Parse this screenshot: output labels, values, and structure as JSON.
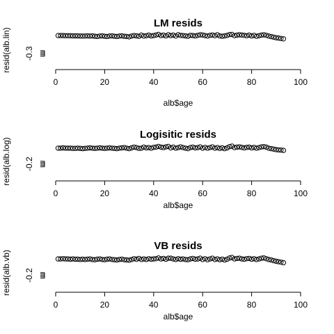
{
  "chart_data": [
    {
      "type": "scatter",
      "title": "LM resids",
      "xlabel": "alb$age",
      "ylabel": "resid(alb.lin)",
      "xlim": [
        0,
        100
      ],
      "xticks": [
        0,
        20,
        40,
        60,
        80,
        100
      ],
      "ylim": [
        -0.36,
        0.02
      ],
      "yticks": [
        -0.3
      ],
      "grid": false,
      "series": [
        {
          "x": [
            1,
            2,
            3,
            4,
            5,
            6,
            7,
            8,
            9,
            10,
            11,
            12,
            13,
            14,
            15,
            16,
            17,
            18,
            19,
            20,
            21,
            22,
            23,
            24,
            25,
            26,
            27,
            28,
            29,
            30,
            31,
            32,
            33,
            34,
            35,
            36,
            37,
            38,
            39,
            40,
            41,
            42,
            43,
            44,
            45,
            46,
            47,
            48,
            49,
            50,
            51,
            52,
            53,
            54,
            55,
            56,
            57,
            58,
            59,
            60,
            61,
            62,
            63,
            64,
            65,
            66,
            67,
            68,
            69,
            70,
            71,
            72,
            73,
            74,
            75,
            76,
            77,
            78,
            79,
            80,
            81,
            82,
            83,
            84,
            85,
            86,
            87,
            88,
            89,
            90,
            91,
            92,
            93
          ],
          "y": [
            0.0,
            0.0,
            0.0,
            -0.005,
            -0.005,
            -0.005,
            -0.01,
            -0.01,
            -0.01,
            -0.015,
            -0.015,
            -0.015,
            -0.01,
            -0.015,
            -0.01,
            -0.02,
            -0.025,
            -0.015,
            -0.01,
            -0.02,
            -0.025,
            -0.015,
            -0.01,
            -0.02,
            -0.025,
            -0.015,
            -0.01,
            -0.02,
            -0.025,
            -0.035,
            -0.015,
            0.0,
            -0.01,
            -0.02,
            0.01,
            -0.015,
            -0.005,
            0.01,
            -0.01,
            0.0,
            0.015,
            0.03,
            0.0,
            0.01,
            -0.01,
            0.02,
            0.0,
            0.01,
            -0.015,
            0.02,
            0.005,
            0.0,
            -0.01,
            -0.02,
            0.005,
            0.0,
            -0.01,
            0.005,
            0.02,
            0.015,
            0.0,
            -0.015,
            0.005,
            0.015,
            -0.005,
            0.02,
            -0.01,
            -0.02,
            -0.01,
            0.005,
            0.025,
            0.03,
            -0.005,
            0.01,
            0.02,
            0.015,
            0.005,
            -0.005,
            0.01,
            -0.01,
            0.005,
            -0.02,
            -0.005,
            0.01,
            0.02,
            0.005,
            -0.015,
            -0.03,
            -0.045,
            -0.06,
            -0.07,
            -0.08,
            -0.09
          ]
        }
      ]
    },
    {
      "type": "scatter",
      "title": "Logisitic resids",
      "xlabel": "alb$age",
      "ylabel": "resid(alb.log)",
      "xlim": [
        0,
        100
      ],
      "xticks": [
        0,
        20,
        40,
        60,
        80,
        100
      ],
      "ylim": [
        -0.26,
        0.02
      ],
      "yticks": [
        -0.2
      ],
      "grid": false,
      "series": [
        {
          "x": [
            1,
            2,
            3,
            4,
            5,
            6,
            7,
            8,
            9,
            10,
            11,
            12,
            13,
            14,
            15,
            16,
            17,
            18,
            19,
            20,
            21,
            22,
            23,
            24,
            25,
            26,
            27,
            28,
            29,
            30,
            31,
            32,
            33,
            34,
            35,
            36,
            37,
            38,
            39,
            40,
            41,
            42,
            43,
            44,
            45,
            46,
            47,
            48,
            49,
            50,
            51,
            52,
            53,
            54,
            55,
            56,
            57,
            58,
            59,
            60,
            61,
            62,
            63,
            64,
            65,
            66,
            67,
            68,
            69,
            70,
            71,
            72,
            73,
            74,
            75,
            76,
            77,
            78,
            79,
            80,
            81,
            82,
            83,
            84,
            85,
            86,
            87,
            88,
            89,
            90,
            91,
            92,
            93
          ],
          "y": [
            -0.02,
            -0.02,
            -0.015,
            -0.02,
            -0.02,
            -0.02,
            -0.025,
            -0.025,
            -0.02,
            -0.025,
            -0.03,
            -0.025,
            -0.02,
            -0.015,
            -0.02,
            -0.025,
            -0.02,
            -0.015,
            -0.02,
            -0.025,
            -0.02,
            -0.015,
            -0.02,
            -0.025,
            -0.03,
            -0.02,
            -0.015,
            -0.01,
            -0.02,
            -0.03,
            -0.015,
            0.0,
            -0.01,
            -0.025,
            -0.02,
            0.0,
            -0.015,
            -0.01,
            -0.02,
            -0.005,
            0.0,
            0.015,
            0.0,
            -0.01,
            0.005,
            0.015,
            -0.015,
            0.0,
            -0.02,
            -0.01,
            0.005,
            -0.01,
            -0.02,
            -0.03,
            -0.01,
            0.0,
            -0.015,
            -0.01,
            0.005,
            -0.02,
            -0.005,
            -0.02,
            -0.01,
            0.005,
            -0.02,
            -0.01,
            -0.025,
            -0.015,
            -0.03,
            -0.015,
            0.01,
            0.02,
            -0.01,
            0.0,
            0.005,
            -0.005,
            -0.015,
            -0.005,
            0.0,
            -0.015,
            -0.005,
            -0.02,
            -0.01,
            0.005,
            0.01,
            0.0,
            -0.02,
            -0.03,
            -0.04,
            -0.05,
            -0.055,
            -0.06,
            -0.065
          ]
        }
      ]
    },
    {
      "type": "scatter",
      "title": "VB resids",
      "xlabel": "alb$age",
      "ylabel": "resid(alb.vb)",
      "xlim": [
        0,
        100
      ],
      "xticks": [
        0,
        20,
        40,
        60,
        80,
        100
      ],
      "ylim": [
        -0.26,
        0.02
      ],
      "yticks": [
        -0.2
      ],
      "grid": false,
      "series": [
        {
          "x": [
            1,
            2,
            3,
            4,
            5,
            6,
            7,
            8,
            9,
            10,
            11,
            12,
            13,
            14,
            15,
            16,
            17,
            18,
            19,
            20,
            21,
            22,
            23,
            24,
            25,
            26,
            27,
            28,
            29,
            30,
            31,
            32,
            33,
            34,
            35,
            36,
            37,
            38,
            39,
            40,
            41,
            42,
            43,
            44,
            45,
            46,
            47,
            48,
            49,
            50,
            51,
            52,
            53,
            54,
            55,
            56,
            57,
            58,
            59,
            60,
            61,
            62,
            63,
            64,
            65,
            66,
            67,
            68,
            69,
            70,
            71,
            72,
            73,
            74,
            75,
            76,
            77,
            78,
            79,
            80,
            81,
            82,
            83,
            84,
            85,
            86,
            87,
            88,
            89,
            90,
            91,
            92,
            93
          ],
          "y": [
            -0.01,
            -0.01,
            -0.005,
            -0.01,
            -0.01,
            -0.015,
            -0.01,
            -0.015,
            -0.015,
            -0.02,
            -0.015,
            -0.02,
            -0.015,
            -0.01,
            -0.02,
            -0.025,
            -0.015,
            -0.01,
            -0.02,
            -0.025,
            -0.015,
            -0.01,
            -0.02,
            -0.025,
            -0.03,
            -0.02,
            -0.015,
            -0.025,
            -0.03,
            -0.035,
            -0.02,
            -0.005,
            -0.015,
            0.0,
            -0.02,
            -0.01,
            -0.02,
            -0.005,
            -0.015,
            -0.01,
            -0.005,
            0.01,
            -0.01,
            0.0,
            -0.015,
            0.005,
            0.005,
            -0.01,
            -0.02,
            -0.005,
            -0.015,
            -0.01,
            -0.02,
            -0.025,
            -0.01,
            0.0,
            -0.015,
            -0.01,
            0.005,
            -0.02,
            -0.005,
            -0.025,
            -0.01,
            0.005,
            -0.02,
            -0.01,
            -0.025,
            -0.015,
            -0.03,
            -0.015,
            0.01,
            0.02,
            -0.01,
            0.0,
            0.005,
            -0.01,
            -0.015,
            -0.005,
            0.0,
            -0.015,
            -0.005,
            -0.02,
            -0.01,
            0.005,
            0.01,
            -0.005,
            -0.02,
            -0.03,
            -0.045,
            -0.055,
            -0.065,
            -0.075,
            -0.085
          ]
        }
      ]
    }
  ]
}
